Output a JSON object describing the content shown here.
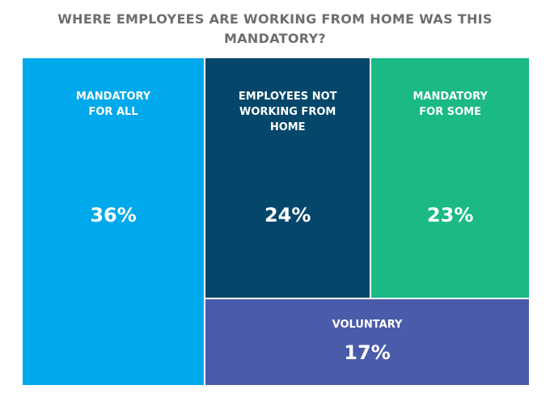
{
  "title": "WHERE EMPLOYEES ARE WORKING FROM HOME WAS THIS MANDATORY?",
  "chart_data": {
    "type": "treemap",
    "title": "WHERE EMPLOYEES ARE WORKING FROM HOME WAS THIS MANDATORY?",
    "items": [
      {
        "label": "MANDATORY\nFOR ALL",
        "value": 36,
        "display": "36%",
        "color": "#00a9ec"
      },
      {
        "label": "EMPLOYEES NOT\nWORKING FROM\nHOME",
        "value": 24,
        "display": "24%",
        "color": "#05476a"
      },
      {
        "label": "MANDATORY\nFOR SOME",
        "value": 23,
        "display": "23%",
        "color": "#1ab985"
      },
      {
        "label": "VOLUNTARY",
        "value": 17,
        "display": "17%",
        "color": "#4a5ba9"
      }
    ]
  }
}
